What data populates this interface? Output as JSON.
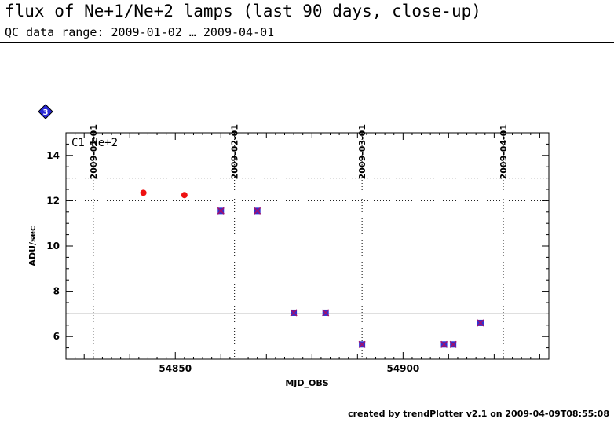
{
  "header": {
    "title": "flux of Ne+1/Ne+2 lamps (last 90 days, close-up)",
    "subtitle": "QC data range: 2009-01-02 … 2009-04-01"
  },
  "footer": {
    "text": "created by trendPlotter v2.1 on 2009-04-09T08:55:08"
  },
  "badge": {
    "icon": "diamond-badge-icon",
    "text": "3",
    "color": "#2a2ad8"
  },
  "chart_data": {
    "type": "scatter",
    "panel_label": "C1_Ne+2",
    "xlabel": "MJD_OBS",
    "ylabel": "ADU/sec",
    "xlim": [
      54826,
      54932
    ],
    "ylim": [
      5,
      15
    ],
    "x_ticks": [
      54850,
      54900
    ],
    "y_ticks": [
      6,
      8,
      10,
      12,
      14
    ],
    "date_markers": [
      {
        "x": 54832,
        "label": "2009-01-01"
      },
      {
        "x": 54863,
        "label": "2009-02-01"
      },
      {
        "x": 54891,
        "label": "2009-03-01"
      },
      {
        "x": 54922,
        "label": "2009-04-01"
      }
    ],
    "reference_lines": {
      "solid": 7.0,
      "dotted": [
        12.0,
        13.0
      ]
    },
    "grid": false,
    "colors": {
      "red": "#ee1111",
      "marker_blue": "#3030d0",
      "marker_cross": "#a01070",
      "line": "#000000"
    },
    "series": [
      {
        "marker": "red-dot",
        "x": [
          54843,
          54852
        ],
        "y": [
          12.35,
          12.25
        ]
      },
      {
        "marker": "blue-square-cross",
        "x": [
          54860,
          54868,
          54876,
          54883,
          54891,
          54909,
          54911,
          54917
        ],
        "y": [
          11.55,
          11.55,
          7.05,
          7.05,
          5.65,
          5.65,
          5.65,
          6.6
        ]
      }
    ]
  }
}
